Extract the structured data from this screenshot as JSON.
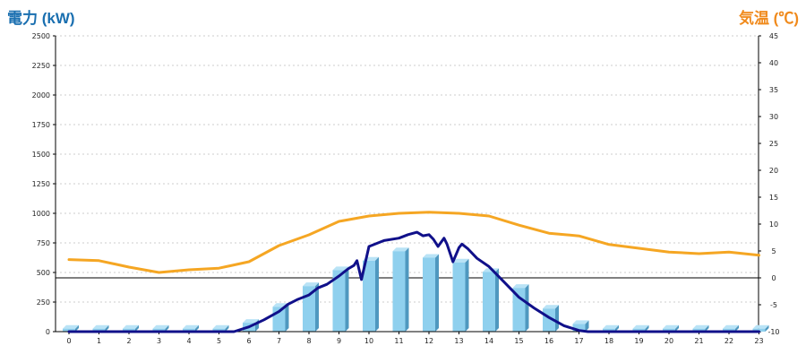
{
  "titles": {
    "left_axis": "電力 (kW)",
    "right_axis": "気温 (℃)"
  },
  "colors": {
    "left_title": "#1a6fb0",
    "right_title": "#f08a1c",
    "bars_front": "#8fd0ee",
    "bars_top": "#b9e3f6",
    "bars_side": "#4f98bf",
    "line_power": "#10108a",
    "line_temp": "#f5a623"
  },
  "chart_data": {
    "type": "bar",
    "categories": [
      "0",
      "1",
      "2",
      "3",
      "4",
      "5",
      "6",
      "7",
      "8",
      "9",
      "10",
      "11",
      "12",
      "13",
      "14",
      "15",
      "16",
      "17",
      "18",
      "19",
      "20",
      "21",
      "22",
      "23"
    ],
    "y_left": {
      "min": 0,
      "max": 2500,
      "ticks": [
        0,
        250,
        500,
        750,
        1000,
        1250,
        1500,
        1750,
        2000,
        2250,
        2500
      ]
    },
    "y_right": {
      "min": -10,
      "max": 45,
      "ticks": [
        -10,
        -5,
        0,
        5,
        10,
        15,
        20,
        25,
        30,
        35,
        40,
        45
      ]
    },
    "grid": true,
    "bars": {
      "axis": "left",
      "values": [
        25,
        25,
        25,
        25,
        25,
        25,
        75,
        210,
        385,
        520,
        600,
        680,
        625,
        585,
        505,
        370,
        195,
        65,
        25,
        25,
        25,
        25,
        25,
        25
      ]
    },
    "lines": [
      {
        "axis": "left",
        "x": [
          0,
          1,
          2,
          3,
          4,
          5,
          5.5,
          6,
          6.5,
          7,
          7.3,
          7.6,
          8,
          8.3,
          8.6,
          9,
          9.3,
          9.5,
          9.6,
          9.75,
          10,
          10.5,
          11,
          11.3,
          11.6,
          11.8,
          12,
          12.15,
          12.3,
          12.5,
          12.6,
          12.8,
          13,
          13.1,
          13.3,
          13.6,
          14,
          14.5,
          15,
          15.5,
          16,
          16.5,
          17,
          17.3,
          18,
          19,
          20,
          21,
          22,
          23
        ],
        "y": [
          0,
          0,
          0,
          0,
          0,
          0,
          0,
          40,
          100,
          170,
          230,
          270,
          310,
          370,
          400,
          470,
          530,
          560,
          600,
          440,
          720,
          770,
          790,
          820,
          840,
          810,
          820,
          780,
          720,
          790,
          740,
          590,
          710,
          740,
          700,
          620,
          550,
          420,
          290,
          200,
          120,
          50,
          10,
          0,
          0,
          0,
          0,
          0,
          0,
          0
        ]
      },
      {
        "axis": "right",
        "x": [
          0,
          1,
          2,
          3,
          4,
          5,
          6,
          7,
          8,
          9,
          10,
          11,
          12,
          13,
          14,
          15,
          16,
          17,
          18,
          19,
          20,
          21,
          22,
          23
        ],
        "y": [
          3.4,
          3.2,
          2.0,
          1.0,
          1.5,
          1.8,
          3.0,
          6.0,
          8.0,
          10.5,
          11.5,
          12.0,
          12.2,
          12.0,
          11.5,
          9.8,
          8.3,
          7.8,
          6.2,
          5.5,
          4.8,
          4.5,
          4.8,
          4.2
        ]
      }
    ]
  }
}
